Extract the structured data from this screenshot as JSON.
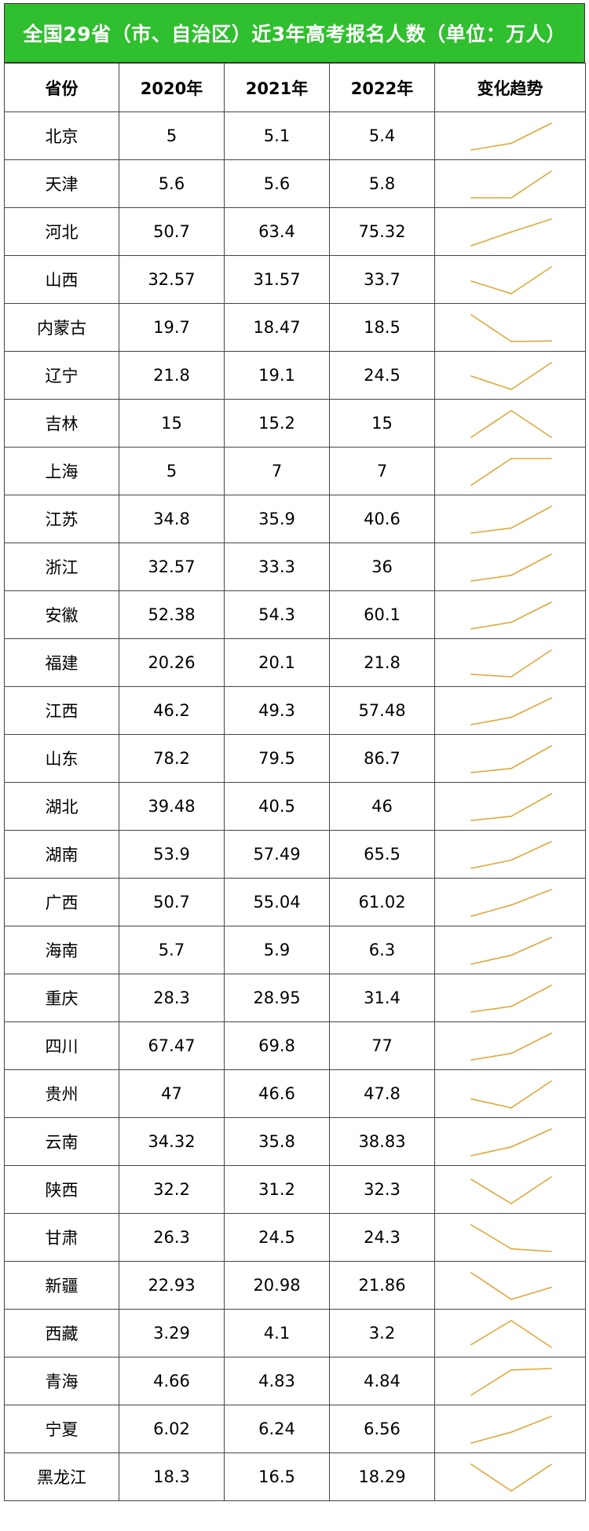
{
  "title": "全国29省（市、自治区）近3年高考报名人数（单位：万人）",
  "columns": [
    "省份",
    "2020年",
    "2021年",
    "2022年",
    "变化趋势"
  ],
  "colors": {
    "title_bg": "#2fbf2f",
    "sparkline": "#e0a63a"
  },
  "chart_data": {
    "type": "table",
    "title": "全国29省（市、自治区）近3年高考报名人数（单位：万人）",
    "columns": [
      "省份",
      "2020年",
      "2021年",
      "2022年",
      "变化趋势"
    ],
    "rows": [
      {
        "province": "北京",
        "v2020": "5",
        "v2021": "5.1",
        "v2022": "5.4"
      },
      {
        "province": "天津",
        "v2020": "5.6",
        "v2021": "5.6",
        "v2022": "5.8"
      },
      {
        "province": "河北",
        "v2020": "50.7",
        "v2021": "63.4",
        "v2022": "75.32"
      },
      {
        "province": "山西",
        "v2020": "32.57",
        "v2021": "31.57",
        "v2022": "33.7"
      },
      {
        "province": "内蒙古",
        "v2020": "19.7",
        "v2021": "18.47",
        "v2022": "18.5"
      },
      {
        "province": "辽宁",
        "v2020": "21.8",
        "v2021": "19.1",
        "v2022": "24.5"
      },
      {
        "province": "吉林",
        "v2020": "15",
        "v2021": "15.2",
        "v2022": "15"
      },
      {
        "province": "上海",
        "v2020": "5",
        "v2021": "7",
        "v2022": "7"
      },
      {
        "province": "江苏",
        "v2020": "34.8",
        "v2021": "35.9",
        "v2022": "40.6"
      },
      {
        "province": "浙江",
        "v2020": "32.57",
        "v2021": "33.3",
        "v2022": "36"
      },
      {
        "province": "安徽",
        "v2020": "52.38",
        "v2021": "54.3",
        "v2022": "60.1"
      },
      {
        "province": "福建",
        "v2020": "20.26",
        "v2021": "20.1",
        "v2022": "21.8"
      },
      {
        "province": "江西",
        "v2020": "46.2",
        "v2021": "49.3",
        "v2022": "57.48"
      },
      {
        "province": "山东",
        "v2020": "78.2",
        "v2021": "79.5",
        "v2022": "86.7"
      },
      {
        "province": "湖北",
        "v2020": "39.48",
        "v2021": "40.5",
        "v2022": "46"
      },
      {
        "province": "湖南",
        "v2020": "53.9",
        "v2021": "57.49",
        "v2022": "65.5"
      },
      {
        "province": "广西",
        "v2020": "50.7",
        "v2021": "55.04",
        "v2022": "61.02"
      },
      {
        "province": "海南",
        "v2020": "5.7",
        "v2021": "5.9",
        "v2022": "6.3"
      },
      {
        "province": "重庆",
        "v2020": "28.3",
        "v2021": "28.95",
        "v2022": "31.4"
      },
      {
        "province": "四川",
        "v2020": "67.47",
        "v2021": "69.8",
        "v2022": "77"
      },
      {
        "province": "贵州",
        "v2020": "47",
        "v2021": "46.6",
        "v2022": "47.8"
      },
      {
        "province": "云南",
        "v2020": "34.32",
        "v2021": "35.8",
        "v2022": "38.83"
      },
      {
        "province": "陕西",
        "v2020": "32.2",
        "v2021": "31.2",
        "v2022": "32.3"
      },
      {
        "province": "甘肃",
        "v2020": "26.3",
        "v2021": "24.5",
        "v2022": "24.3"
      },
      {
        "province": "新疆",
        "v2020": "22.93",
        "v2021": "20.98",
        "v2022": "21.86"
      },
      {
        "province": "西藏",
        "v2020": "3.29",
        "v2021": "4.1",
        "v2022": "3.2"
      },
      {
        "province": "青海",
        "v2020": "4.66",
        "v2021": "4.83",
        "v2022": "4.84"
      },
      {
        "province": "宁夏",
        "v2020": "6.02",
        "v2021": "6.24",
        "v2022": "6.56"
      },
      {
        "province": "黑龙江",
        "v2020": "18.3",
        "v2021": "16.5",
        "v2022": "18.29"
      }
    ]
  }
}
